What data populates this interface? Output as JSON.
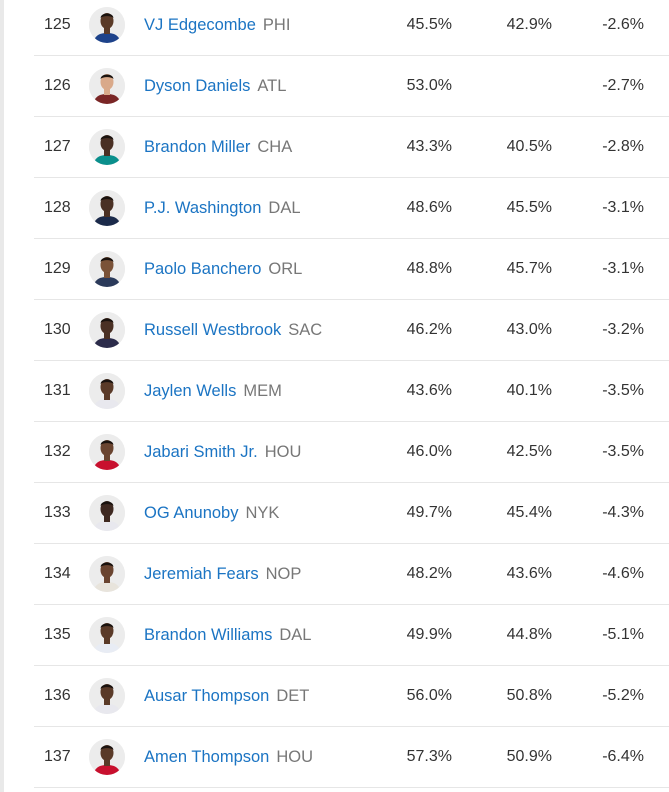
{
  "table": {
    "rows": [
      {
        "rank": "125",
        "name": "VJ Edgecombe",
        "team": "PHI",
        "v1": "45.5%",
        "v2": "42.9%",
        "v3": "-2.6%",
        "jersey": "#1d428a",
        "skin": "#5a3a28"
      },
      {
        "rank": "126",
        "name": "Dyson Daniels",
        "team": "ATL",
        "v1": "53.0%",
        "v2": "",
        "v3": "-2.7%",
        "jersey": "#7a2626",
        "skin": "#d9a98a"
      },
      {
        "rank": "127",
        "name": "Brandon Miller",
        "team": "CHA",
        "v1": "43.3%",
        "v2": "40.5%",
        "v3": "-2.8%",
        "jersey": "#0a8f8c",
        "skin": "#4a3024"
      },
      {
        "rank": "128",
        "name": "P.J. Washington",
        "team": "DAL",
        "v1": "48.6%",
        "v2": "45.5%",
        "v3": "-3.1%",
        "jersey": "#1b2a4a",
        "skin": "#4a3024"
      },
      {
        "rank": "129",
        "name": "Paolo Banchero",
        "team": "ORL",
        "v1": "48.8%",
        "v2": "45.7%",
        "v3": "-3.1%",
        "jersey": "#2b3a5a",
        "skin": "#7a5238"
      },
      {
        "rank": "130",
        "name": "Russell Westbrook",
        "team": "SAC",
        "v1": "46.2%",
        "v2": "43.0%",
        "v3": "-3.2%",
        "jersey": "#2b2b4a",
        "skin": "#4a3024"
      },
      {
        "rank": "131",
        "name": "Jaylen Wells",
        "team": "MEM",
        "v1": "43.6%",
        "v2": "40.1%",
        "v3": "-3.5%",
        "jersey": "#e8e8ee",
        "skin": "#5a3a28"
      },
      {
        "rank": "132",
        "name": "Jabari Smith Jr.",
        "team": "HOU",
        "v1": "46.0%",
        "v2": "42.5%",
        "v3": "-3.5%",
        "jersey": "#c8102e",
        "skin": "#6a4430"
      },
      {
        "rank": "133",
        "name": "OG Anunoby",
        "team": "NYK",
        "v1": "49.7%",
        "v2": "45.4%",
        "v3": "-4.3%",
        "jersey": "#e8e8ee",
        "skin": "#3e2820"
      },
      {
        "rank": "134",
        "name": "Jeremiah Fears",
        "team": "NOP",
        "v1": "48.2%",
        "v2": "43.6%",
        "v3": "-4.6%",
        "jersey": "#e8e4dc",
        "skin": "#6a4430"
      },
      {
        "rank": "135",
        "name": "Brandon Williams",
        "team": "DAL",
        "v1": "49.9%",
        "v2": "44.8%",
        "v3": "-5.1%",
        "jersey": "#e8ecf4",
        "skin": "#5a3a28"
      },
      {
        "rank": "136",
        "name": "Ausar Thompson",
        "team": "DET",
        "v1": "56.0%",
        "v2": "50.8%",
        "v3": "-5.2%",
        "jersey": "#e8e8ee",
        "skin": "#5a3a28"
      },
      {
        "rank": "137",
        "name": "Amen Thompson",
        "team": "HOU",
        "v1": "57.3%",
        "v2": "50.9%",
        "v3": "-6.4%",
        "jersey": "#c8102e",
        "skin": "#5a3a28"
      }
    ]
  }
}
